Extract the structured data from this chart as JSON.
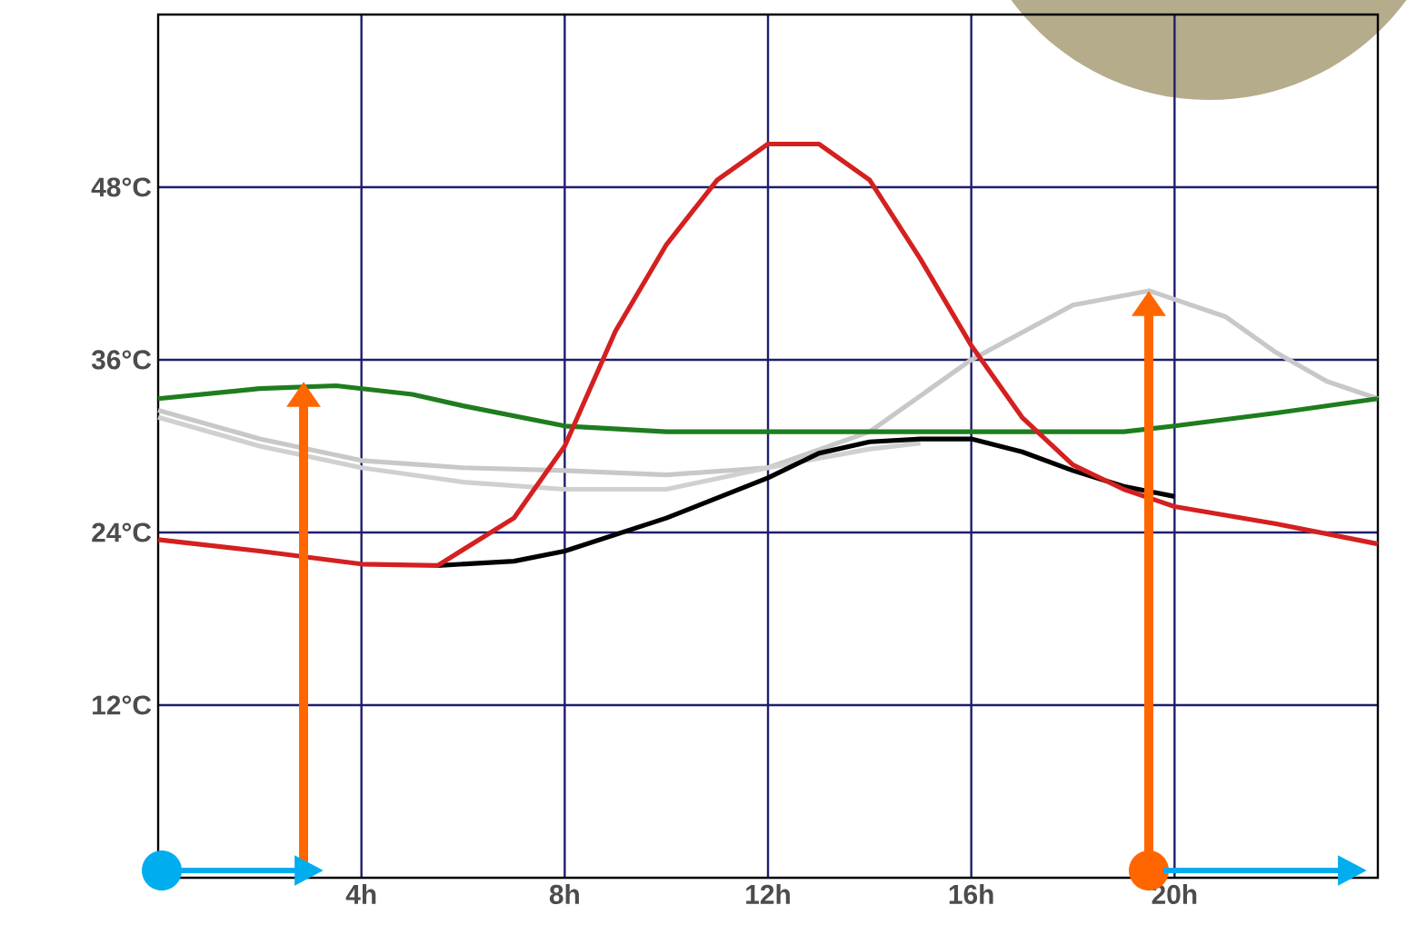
{
  "chart_data": {
    "type": "line",
    "xlim": [
      0,
      24
    ],
    "ylim": [
      0,
      60
    ],
    "xticks": [
      {
        "value": 4,
        "label": "4h"
      },
      {
        "value": 8,
        "label": "8h"
      },
      {
        "value": 12,
        "label": "12h"
      },
      {
        "value": 16,
        "label": "16h"
      },
      {
        "value": 20,
        "label": "20h"
      }
    ],
    "yticks": [
      {
        "value": 12,
        "label": "12°C"
      },
      {
        "value": 24,
        "label": "24°C"
      },
      {
        "value": 36,
        "label": "36°C"
      },
      {
        "value": 48,
        "label": "48°C"
      }
    ],
    "grid": true,
    "marker": "none",
    "line_style": "solid",
    "series": [
      {
        "color": "#c8c8c8",
        "x": [
          0,
          2,
          4,
          6,
          8,
          10,
          12,
          14,
          16,
          18,
          19.5,
          21,
          22,
          23,
          24
        ],
        "values": [
          32.5,
          30.5,
          29,
          28.5,
          28.3,
          28,
          28.5,
          31,
          36,
          39.8,
          40.8,
          39,
          36.5,
          34.5,
          33.3
        ]
      },
      {
        "color": "#d0d0d0",
        "x": [
          0,
          2,
          4,
          6,
          8,
          10,
          12,
          14,
          15
        ],
        "values": [
          32,
          30,
          28.5,
          27.5,
          27,
          27,
          28.5,
          29.8,
          30.2
        ]
      },
      {
        "color": "#1e7d1e",
        "x": [
          0,
          2,
          3.5,
          5,
          6,
          8,
          10,
          16,
          19,
          20,
          22,
          24
        ],
        "values": [
          33.3,
          34,
          34.2,
          33.6,
          32.8,
          31.4,
          31,
          31,
          31,
          31.4,
          32.3,
          33.3
        ]
      },
      {
        "color": "#000000",
        "x": [
          5.5,
          7,
          8,
          10,
          12,
          13,
          14,
          15,
          16,
          17,
          18,
          19,
          20
        ],
        "values": [
          21.7,
          22,
          22.7,
          25,
          27.8,
          29.5,
          30.3,
          30.5,
          30.5,
          29.6,
          28.3,
          27.2,
          26.5
        ]
      },
      {
        "color": "#d42020",
        "x": [
          0,
          2,
          4,
          5.5,
          7,
          8,
          9,
          10,
          11,
          12,
          13,
          14,
          15,
          16,
          17,
          18,
          19,
          20,
          22,
          24
        ],
        "values": [
          23.5,
          22.7,
          21.8,
          21.7,
          25,
          30,
          38,
          44,
          48.5,
          51,
          51,
          48.5,
          43,
          37,
          32,
          28.7,
          27,
          25.8,
          24.6,
          23.2
        ]
      }
    ]
  }
}
